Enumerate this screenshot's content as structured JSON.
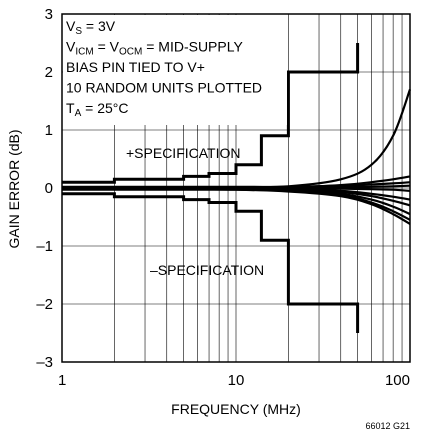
{
  "chart_data": {
    "type": "line",
    "title": "",
    "xlabel": "FREQUENCY (MHz)",
    "ylabel": "GAIN ERROR (dB)",
    "x_scale": "log",
    "xlim": [
      1,
      100
    ],
    "ylim": [
      -3,
      3
    ],
    "x_ticks": [
      1,
      10,
      100
    ],
    "x_tick_labels": [
      "1",
      "10",
      "100"
    ],
    "y_ticks": [
      -3,
      -2,
      -1,
      0,
      1,
      2,
      3
    ],
    "y_tick_labels": [
      "–3",
      "–2",
      "–1",
      "0",
      "1",
      "2",
      "3"
    ],
    "grid": true,
    "conditions": [
      {
        "main": "V",
        "sub": "S",
        "rest": " = 3V"
      },
      {
        "main": "V",
        "sub": "ICM",
        "rest": " = V",
        "sub2": "OCM",
        "rest2": " = MID-SUPPLY"
      },
      {
        "main": "BIAS PIN TIED TO V+"
      },
      {
        "main": "10 RANDOM UNITS PLOTTED"
      },
      {
        "main": "T",
        "sub": "A",
        "rest": " = 25°C"
      }
    ],
    "annotations": {
      "plus_spec": "+SPECIFICATION",
      "minus_spec": "–SPECIFICATION"
    },
    "figure_id": "66012 G21",
    "spec_limits": {
      "upper": [
        {
          "x": 1,
          "y": 0.1
        },
        {
          "x": 2,
          "y": 0.1
        },
        {
          "x": 2,
          "y": 0.15
        },
        {
          "x": 5,
          "y": 0.15
        },
        {
          "x": 5,
          "y": 0.2
        },
        {
          "x": 7,
          "y": 0.2
        },
        {
          "x": 7,
          "y": 0.25
        },
        {
          "x": 10,
          "y": 0.25
        },
        {
          "x": 10,
          "y": 0.4
        },
        {
          "x": 14,
          "y": 0.4
        },
        {
          "x": 14,
          "y": 0.9
        },
        {
          "x": 20,
          "y": 0.9
        },
        {
          "x": 20,
          "y": 2.0
        },
        {
          "x": 50,
          "y": 2.0
        },
        {
          "x": 50,
          "y": 2.5
        }
      ],
      "lower": [
        {
          "x": 1,
          "y": -0.1
        },
        {
          "x": 2,
          "y": -0.1
        },
        {
          "x": 2,
          "y": -0.15
        },
        {
          "x": 5,
          "y": -0.15
        },
        {
          "x": 5,
          "y": -0.2
        },
        {
          "x": 7,
          "y": -0.2
        },
        {
          "x": 7,
          "y": -0.25
        },
        {
          "x": 10,
          "y": -0.25
        },
        {
          "x": 10,
          "y": -0.4
        },
        {
          "x": 14,
          "y": -0.4
        },
        {
          "x": 14,
          "y": -0.9
        },
        {
          "x": 20,
          "y": -0.9
        },
        {
          "x": 20,
          "y": -2.0
        },
        {
          "x": 50,
          "y": -2.0
        },
        {
          "x": 50,
          "y": -2.5
        }
      ]
    },
    "series": [
      {
        "x": [
          1,
          5,
          10,
          20,
          40,
          60,
          80,
          100
        ],
        "values": [
          0.02,
          0.02,
          0.02,
          0.03,
          0.15,
          0.4,
          0.9,
          1.7
        ]
      },
      {
        "x": [
          1,
          5,
          10,
          20,
          40,
          60,
          80,
          100
        ],
        "values": [
          0.0,
          0.0,
          0.0,
          0.01,
          0.05,
          0.1,
          0.15,
          0.2
        ]
      },
      {
        "x": [
          1,
          5,
          10,
          20,
          40,
          60,
          80,
          100
        ],
        "values": [
          0.01,
          0.01,
          0.01,
          0.02,
          0.04,
          0.06,
          0.08,
          0.1
        ]
      },
      {
        "x": [
          1,
          5,
          10,
          20,
          40,
          60,
          80,
          100
        ],
        "values": [
          0.0,
          0.0,
          0.0,
          0.0,
          0.01,
          0.02,
          0.03,
          0.04
        ]
      },
      {
        "x": [
          1,
          5,
          10,
          20,
          40,
          60,
          80,
          100
        ],
        "values": [
          0.0,
          0.0,
          0.0,
          0.0,
          -0.01,
          -0.02,
          -0.03,
          -0.05
        ]
      },
      {
        "x": [
          1,
          5,
          10,
          20,
          40,
          60,
          80,
          100
        ],
        "values": [
          -0.01,
          -0.01,
          -0.01,
          -0.02,
          -0.05,
          -0.1,
          -0.15,
          -0.2
        ]
      },
      {
        "x": [
          1,
          5,
          10,
          20,
          40,
          60,
          80,
          100
        ],
        "values": [
          -0.01,
          -0.01,
          -0.02,
          -0.03,
          -0.07,
          -0.14,
          -0.22,
          -0.3
        ]
      },
      {
        "x": [
          1,
          5,
          10,
          20,
          40,
          60,
          80,
          100
        ],
        "values": [
          -0.02,
          -0.02,
          -0.02,
          -0.04,
          -0.1,
          -0.2,
          -0.32,
          -0.45
        ]
      },
      {
        "x": [
          1,
          5,
          10,
          20,
          40,
          60,
          80,
          100
        ],
        "values": [
          -0.02,
          -0.02,
          -0.03,
          -0.05,
          -0.12,
          -0.25,
          -0.4,
          -0.55
        ]
      },
      {
        "x": [
          1,
          5,
          10,
          20,
          40,
          60,
          80,
          100
        ],
        "values": [
          -0.03,
          -0.03,
          -0.03,
          -0.06,
          -0.14,
          -0.28,
          -0.45,
          -0.62
        ]
      }
    ]
  }
}
